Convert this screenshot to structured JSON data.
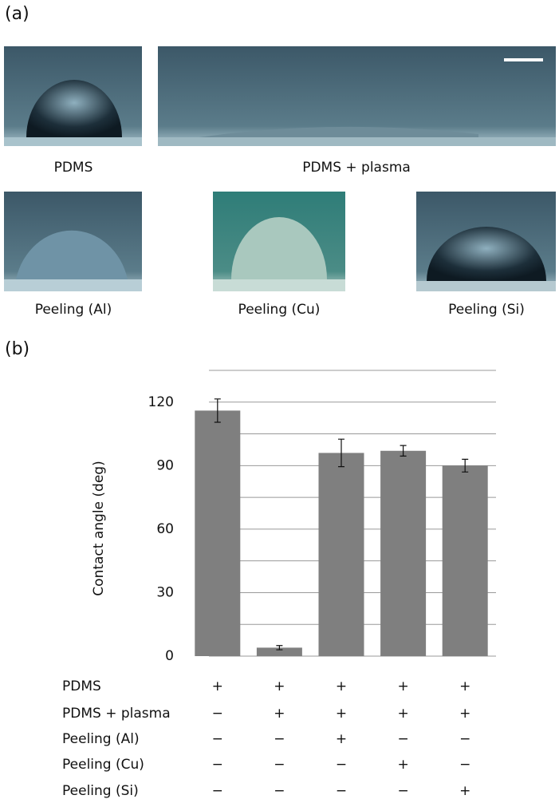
{
  "panel_a": {
    "label": "(a)",
    "photos": [
      "PDMS",
      "PDMS + plasma",
      "Peeling (Al)",
      "Peeling (Cu)",
      "Peeling (Si)"
    ]
  },
  "chart_data": {
    "type": "bar",
    "panel_label": "(b)",
    "y_label": "Contact angle (deg)",
    "values": [
      116,
      4,
      96,
      97,
      90
    ],
    "errors": [
      5.5,
      1,
      6.5,
      2.5,
      3
    ],
    "color": "#7f7f7f",
    "ylim": [
      0,
      135
    ],
    "yticks": [
      0,
      30,
      60,
      90,
      120
    ],
    "minor_gridlines": [
      15,
      45,
      75,
      105,
      135
    ],
    "grid": true,
    "conditions": [
      {
        "name": "PDMS",
        "marks": [
          "+",
          "+",
          "+",
          "+",
          "+"
        ]
      },
      {
        "name": "PDMS + plasma",
        "marks": [
          "−",
          "+",
          "+",
          "+",
          "+"
        ]
      },
      {
        "name": "Peeling (Al)",
        "marks": [
          "−",
          "−",
          "+",
          "−",
          "−"
        ]
      },
      {
        "name": "Peeling (Cu)",
        "marks": [
          "−",
          "−",
          "−",
          "+",
          "−"
        ]
      },
      {
        "name": "Peeling (Si)",
        "marks": [
          "−",
          "−",
          "−",
          "−",
          "+"
        ]
      }
    ]
  }
}
